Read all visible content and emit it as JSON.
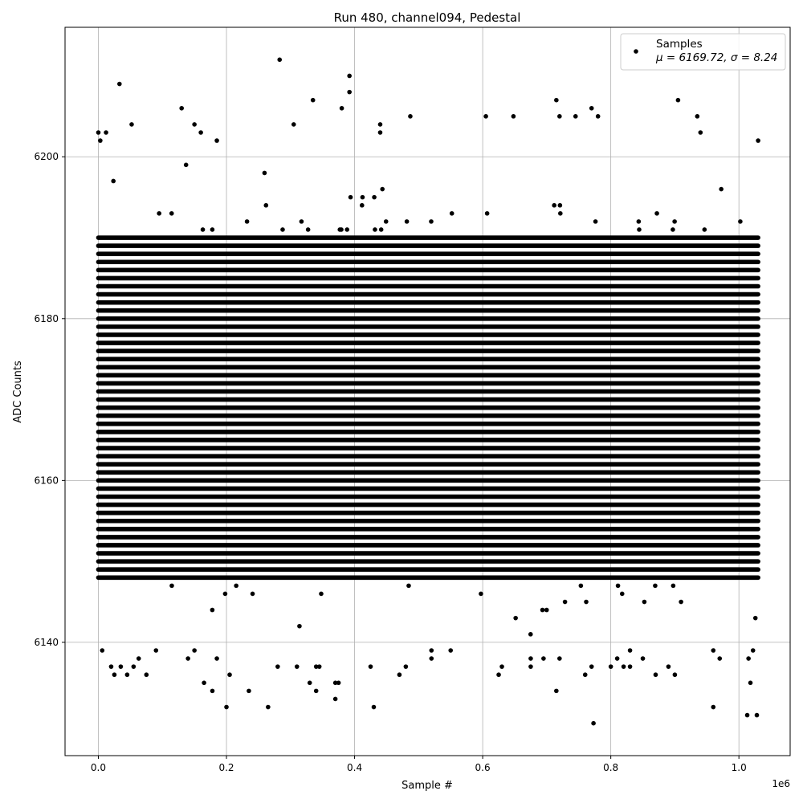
{
  "chart_data": {
    "type": "scatter",
    "title": "Run 480, channel094, Pedestal",
    "xlabel": "Sample #",
    "ylabel": "ADC Counts",
    "x_offset_text": "1e6",
    "xlim": [
      -0.052,
      1.08
    ],
    "ylim": [
      6126,
      6216
    ],
    "xticks": [
      0.0,
      0.2,
      0.4,
      0.6,
      0.8,
      1.0
    ],
    "xtick_labels": [
      "0.0",
      "0.2",
      "0.4",
      "0.6",
      "0.8",
      "1.0"
    ],
    "yticks": [
      6140,
      6160,
      6180,
      6200
    ],
    "ytick_labels": [
      "6140",
      "6160",
      "6180",
      "6200"
    ],
    "grid": true,
    "legend": {
      "placement": "top-right",
      "label_line1": "Samples",
      "label_line2": "μ = 6169.72, σ = 8.24"
    },
    "marker_color": "#000000",
    "x_range_of_samples": [
      0.0,
      1.03
    ],
    "dense_band": {
      "y_min": 6148,
      "y_max": 6190,
      "step": 1
    },
    "series": [
      {
        "name": "Samples",
        "outliers": [
          [
            0.0,
            6203
          ],
          [
            0.003,
            6202
          ],
          [
            0.012,
            6203
          ],
          [
            0.033,
            6209
          ],
          [
            0.052,
            6204
          ],
          [
            0.13,
            6206
          ],
          [
            0.15,
            6204
          ],
          [
            0.16,
            6203
          ],
          [
            0.185,
            6202
          ],
          [
            0.283,
            6212
          ],
          [
            0.305,
            6204
          ],
          [
            0.335,
            6207
          ],
          [
            0.38,
            6206
          ],
          [
            0.392,
            6210
          ],
          [
            0.392,
            6208
          ],
          [
            0.44,
            6203
          ],
          [
            0.44,
            6204
          ],
          [
            0.487,
            6205
          ],
          [
            0.605,
            6205
          ],
          [
            0.648,
            6205
          ],
          [
            0.715,
            6207
          ],
          [
            0.72,
            6205
          ],
          [
            0.745,
            6205
          ],
          [
            0.77,
            6206
          ],
          [
            0.78,
            6205
          ],
          [
            0.905,
            6207
          ],
          [
            0.935,
            6205
          ],
          [
            0.94,
            6203
          ],
          [
            1.03,
            6202
          ],
          [
            0.2,
            6132
          ],
          [
            0.265,
            6132
          ],
          [
            0.37,
            6133
          ],
          [
            0.43,
            6132
          ],
          [
            0.715,
            6134
          ],
          [
            0.773,
            6130
          ],
          [
            0.96,
            6132
          ],
          [
            1.013,
            6131
          ],
          [
            1.028,
            6131
          ],
          [
            1.018,
            6135
          ],
          [
            0.165,
            6135
          ],
          [
            0.178,
            6134
          ],
          [
            0.235,
            6134
          ],
          [
            0.33,
            6135
          ],
          [
            0.34,
            6134
          ],
          [
            0.37,
            6135
          ],
          [
            0.375,
            6135
          ],
          [
            0.025,
            6136
          ],
          [
            0.045,
            6136
          ],
          [
            0.075,
            6136
          ],
          [
            0.47,
            6136
          ],
          [
            0.625,
            6136
          ],
          [
            0.76,
            6136
          ],
          [
            0.87,
            6136
          ],
          [
            0.9,
            6136
          ],
          [
            0.006,
            6139
          ],
          [
            0.02,
            6137
          ],
          [
            0.035,
            6137
          ],
          [
            0.055,
            6137
          ],
          [
            0.063,
            6138
          ],
          [
            0.14,
            6138
          ],
          [
            0.185,
            6138
          ],
          [
            0.205,
            6136
          ],
          [
            0.28,
            6137
          ],
          [
            0.31,
            6137
          ],
          [
            0.34,
            6137
          ],
          [
            0.345,
            6137
          ],
          [
            0.425,
            6137
          ],
          [
            0.48,
            6137
          ],
          [
            0.52,
            6138
          ],
          [
            0.63,
            6137
          ],
          [
            0.675,
            6137
          ],
          [
            0.695,
            6138
          ],
          [
            0.77,
            6137
          ],
          [
            0.8,
            6137
          ],
          [
            0.83,
            6139
          ],
          [
            0.85,
            6138
          ],
          [
            0.89,
            6137
          ],
          [
            0.96,
            6139
          ],
          [
            0.97,
            6138
          ],
          [
            1.015,
            6138
          ],
          [
            1.022,
            6139
          ],
          [
            0.09,
            6139
          ],
          [
            0.15,
            6139
          ],
          [
            0.52,
            6139
          ],
          [
            0.55,
            6139
          ],
          [
            0.675,
            6138
          ],
          [
            0.72,
            6138
          ],
          [
            0.81,
            6138
          ],
          [
            0.82,
            6137
          ],
          [
            0.83,
            6137
          ]
        ]
      }
    ]
  }
}
